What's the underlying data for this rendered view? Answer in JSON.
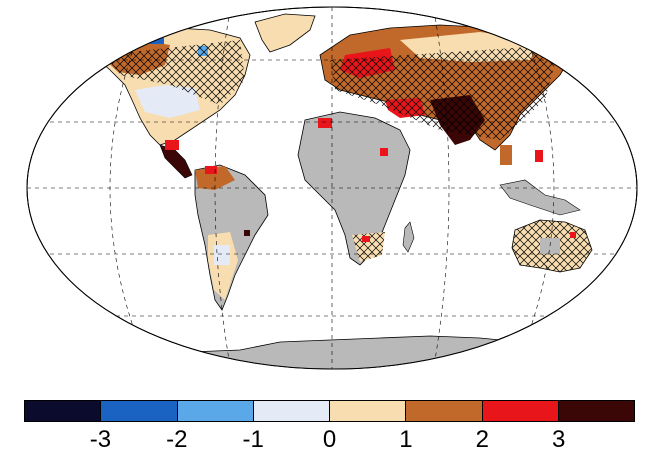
{
  "colorbar": {
    "colors": [
      "#0b0b2e",
      "#1a63c2",
      "#5aa8e8",
      "#e4ebf7",
      "#f8ddb0",
      "#c0692a",
      "#e8151a",
      "#3a0606"
    ],
    "ticks": [
      "-3",
      "-2",
      "-1",
      "0",
      "1",
      "2",
      "3"
    ]
  },
  "map_colors": {
    "ocean": "#ffffff",
    "no_data_land": "#b9b9b9",
    "coast": "#000000",
    "grid": "#000000"
  }
}
